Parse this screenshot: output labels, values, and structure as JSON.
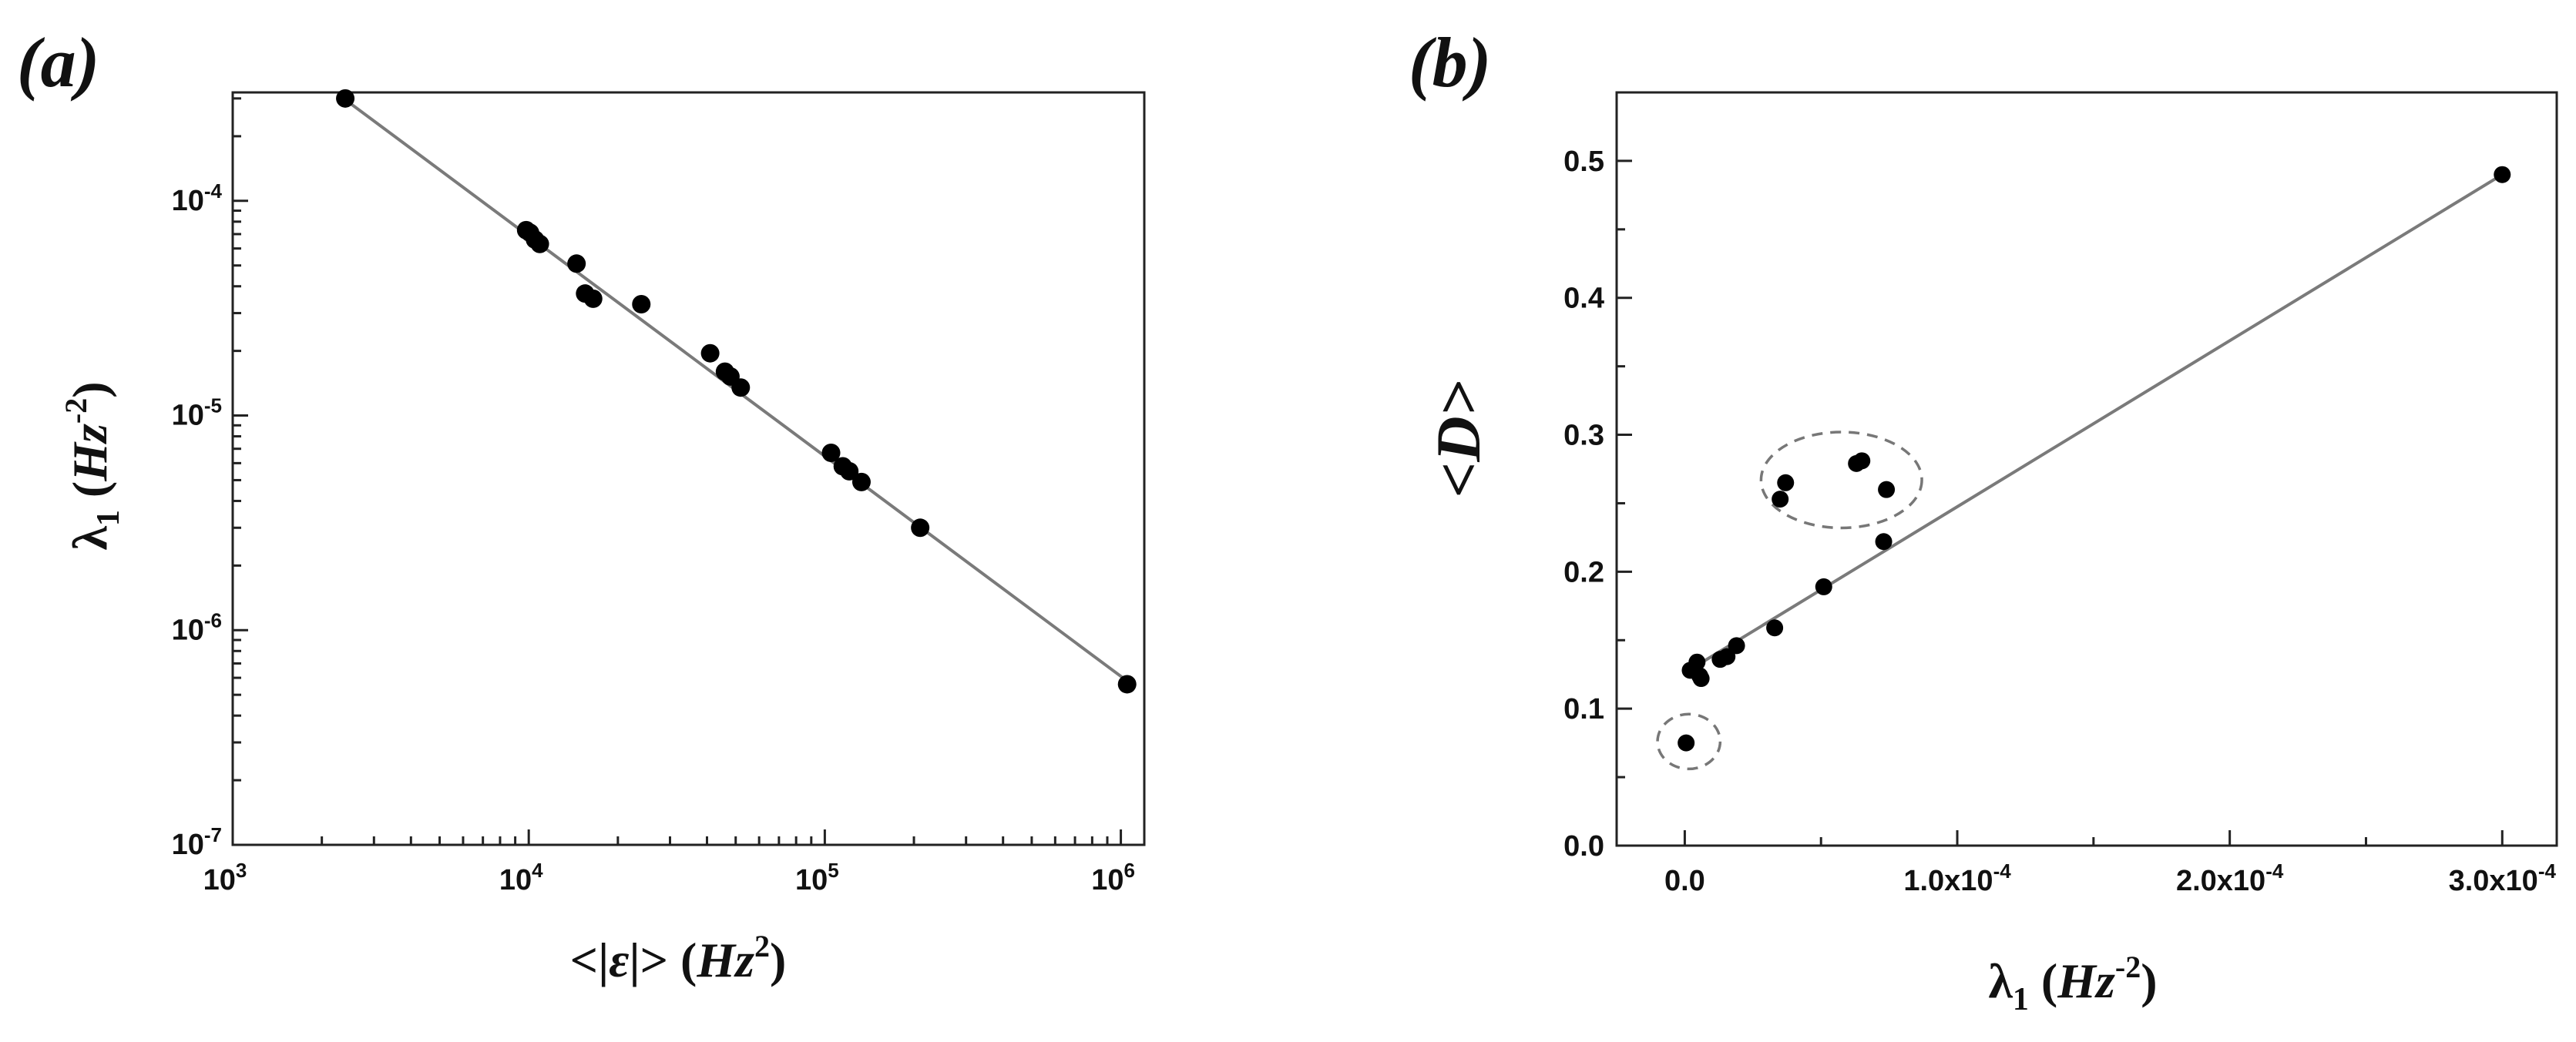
{
  "chart_data": [
    {
      "type": "scatter",
      "panel_label": "(a)",
      "xlabel_parts": [
        "<|",
        "ε",
        "|> (",
        "Hz",
        "2",
        ")"
      ],
      "ylabel_parts": [
        "λ",
        "1",
        " (",
        "Hz",
        "-2",
        ")"
      ],
      "x_scale": "log",
      "y_scale": "log",
      "xlim": [
        1000,
        1200000
      ],
      "ylim": [
        1e-07,
        0.00032
      ],
      "x_ticks": [
        {
          "value": 1000,
          "base": "10",
          "exp": "3"
        },
        {
          "value": 10000,
          "base": "10",
          "exp": "4"
        },
        {
          "value": 100000,
          "base": "10",
          "exp": "5"
        },
        {
          "value": 1000000,
          "base": "10",
          "exp": "6"
        }
      ],
      "y_ticks": [
        {
          "value": 1e-07,
          "base": "10",
          "exp": "-7"
        },
        {
          "value": 1e-06,
          "base": "10",
          "exp": "-6"
        },
        {
          "value": 1e-05,
          "base": "10",
          "exp": "-5"
        },
        {
          "value": 0.0001,
          "base": "10",
          "exp": "-4"
        }
      ],
      "points": [
        {
          "x": 2400,
          "y": 0.0003
        },
        {
          "x": 9800,
          "y": 7.3e-05
        },
        {
          "x": 10100,
          "y": 7.1e-05
        },
        {
          "x": 10500,
          "y": 6.6e-05
        },
        {
          "x": 10900,
          "y": 6.3e-05
        },
        {
          "x": 14500,
          "y": 5.1e-05
        },
        {
          "x": 15500,
          "y": 3.7e-05
        },
        {
          "x": 16500,
          "y": 3.5e-05
        },
        {
          "x": 24000,
          "y": 3.3e-05
        },
        {
          "x": 41000,
          "y": 1.95e-05
        },
        {
          "x": 46000,
          "y": 1.6e-05
        },
        {
          "x": 48000,
          "y": 1.52e-05
        },
        {
          "x": 52000,
          "y": 1.35e-05
        },
        {
          "x": 105000,
          "y": 6.7e-06
        },
        {
          "x": 115000,
          "y": 5.8e-06
        },
        {
          "x": 121000,
          "y": 5.5e-06
        },
        {
          "x": 133000,
          "y": 4.9e-06
        },
        {
          "x": 210000,
          "y": 3e-06
        },
        {
          "x": 1050000,
          "y": 5.6e-07
        }
      ],
      "fit_line": {
        "x": [
          2400,
          1050000
        ],
        "y": [
          0.000296,
          5.8e-07
        ]
      }
    },
    {
      "type": "scatter",
      "panel_label": "(b)",
      "xlabel_parts": [
        "λ",
        "1",
        " (",
        "Hz",
        "-2",
        ")"
      ],
      "ylabel": "<D>",
      "x_scale": "linear",
      "y_scale": "linear",
      "xlim": [
        -2.5e-05,
        0.00032
      ],
      "ylim": [
        0,
        0.55
      ],
      "x_ticks": [
        {
          "value": 0,
          "label": "0.0"
        },
        {
          "value": 0.0001,
          "label": "1.0x10",
          "exp": "-4"
        },
        {
          "value": 0.0002,
          "label": "2.0x10",
          "exp": "-4"
        },
        {
          "value": 0.0003,
          "label": "3.0x10",
          "exp": "-4"
        }
      ],
      "y_ticks": [
        {
          "value": 0.0,
          "label": "0.0"
        },
        {
          "value": 0.1,
          "label": "0.1"
        },
        {
          "value": 0.2,
          "label": "0.2"
        },
        {
          "value": 0.3,
          "label": "0.3"
        },
        {
          "value": 0.4,
          "label": "0.4"
        },
        {
          "value": 0.5,
          "label": "0.5"
        }
      ],
      "points": [
        {
          "x": 5e-07,
          "y": 0.075
        },
        {
          "x": 2e-06,
          "y": 0.128
        },
        {
          "x": 4.5e-06,
          "y": 0.134
        },
        {
          "x": 5.5e-06,
          "y": 0.124
        },
        {
          "x": 6e-06,
          "y": 0.122
        },
        {
          "x": 1.3e-05,
          "y": 0.136
        },
        {
          "x": 1.55e-05,
          "y": 0.138
        },
        {
          "x": 1.9e-05,
          "y": 0.146
        },
        {
          "x": 3.3e-05,
          "y": 0.159
        },
        {
          "x": 3.5e-05,
          "y": 0.253
        },
        {
          "x": 3.7e-05,
          "y": 0.265
        },
        {
          "x": 5.1e-05,
          "y": 0.189
        },
        {
          "x": 6.3e-05,
          "y": 0.279
        },
        {
          "x": 6.5e-05,
          "y": 0.281
        },
        {
          "x": 7.3e-05,
          "y": 0.222
        },
        {
          "x": 7.4e-05,
          "y": 0.26
        },
        {
          "x": 0.0003,
          "y": 0.49
        }
      ],
      "fit_line": {
        "x": [
          1.5e-06,
          0.0003
        ],
        "y": [
          0.128,
          0.49
        ]
      },
      "highlights": [
        {
          "cx": 1.5e-06,
          "cy": 0.076,
          "rx": 1.15e-05,
          "ry": 0.02
        },
        {
          "cx": 5.75e-05,
          "cy": 0.267,
          "rx": 2.95e-05,
          "ry": 0.035
        }
      ]
    }
  ]
}
